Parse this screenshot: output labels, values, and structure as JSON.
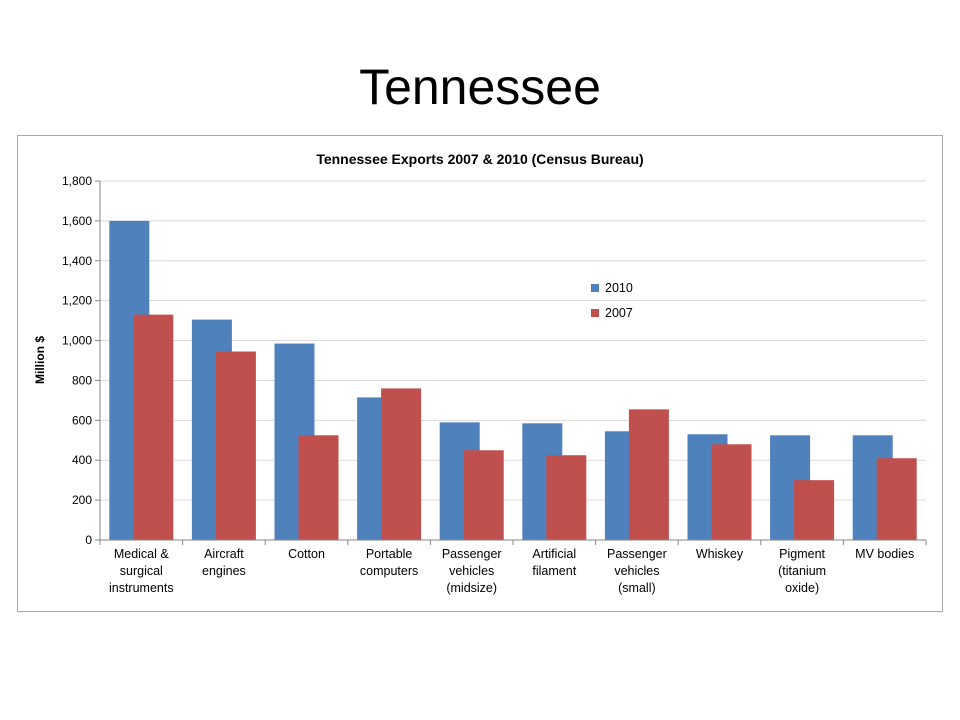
{
  "slide": {
    "title": "Tennessee"
  },
  "colors": {
    "series_2010": "#4f81bd",
    "series_2007": "#c0504d",
    "grid": "#d9d9d9",
    "axis": "#868686"
  },
  "chart_data": {
    "type": "bar",
    "title": "Tennessee Exports 2007 & 2010 (Census Bureau)",
    "xlabel": "",
    "ylabel": "Million $",
    "ylim": [
      0,
      1800
    ],
    "yticks": [
      "0",
      "200",
      "400",
      "600",
      "800",
      "1,000",
      "1,200",
      "1,400",
      "1,600",
      "1,800"
    ],
    "ytick_values": [
      0,
      200,
      400,
      600,
      800,
      1000,
      1200,
      1400,
      1600,
      1800
    ],
    "grid": true,
    "legend": "center-right",
    "categories": [
      [
        "Medical &",
        "surgical",
        "instruments"
      ],
      [
        "Aircraft",
        "engines"
      ],
      [
        "Cotton"
      ],
      [
        "Portable",
        "computers"
      ],
      [
        "Passenger",
        "vehicles",
        "(midsize)"
      ],
      [
        "Artificial",
        "filament"
      ],
      [
        "Passenger",
        "vehicles",
        "(small)"
      ],
      [
        "Whiskey"
      ],
      [
        "Pigment",
        "(titanium",
        "oxide)"
      ],
      [
        "MV bodies"
      ]
    ],
    "series": [
      {
        "name": "2010",
        "values": [
          1600,
          1105,
          985,
          715,
          590,
          585,
          545,
          530,
          525,
          525
        ]
      },
      {
        "name": "2007",
        "values": [
          1130,
          945,
          525,
          760,
          450,
          425,
          655,
          480,
          300,
          410
        ]
      }
    ]
  }
}
